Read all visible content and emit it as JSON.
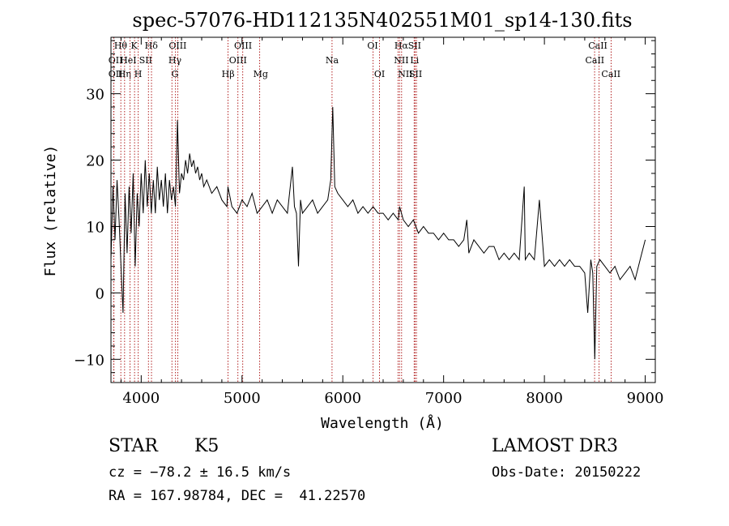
{
  "chart_data": {
    "type": "line",
    "title": "spec-57076-HD112135N402551M01_sp14-130.fits",
    "xlabel": "Wavelength (Å)",
    "ylabel": "Flux (relative)",
    "xlim": [
      3700,
      9100
    ],
    "ylim": [
      -13.5,
      38.5
    ],
    "x_ticks": [
      4000,
      5000,
      6000,
      7000,
      8000,
      9000
    ],
    "x_tick_labels": [
      "4000",
      "5000",
      "6000",
      "7000",
      "8000",
      "9000"
    ],
    "y_ticks": [
      -10,
      0,
      10,
      20,
      30
    ],
    "y_tick_labels": [
      "−10",
      "0",
      "10",
      "20",
      "30"
    ],
    "grid": false,
    "line_color": "#000000",
    "marker_color": "#b22222",
    "series": [
      {
        "x": [
          3700,
          3720,
          3740,
          3760,
          3780,
          3800,
          3820,
          3840,
          3860,
          3880,
          3900,
          3920,
          3940,
          3960,
          3980,
          4000,
          4020,
          4040,
          4060,
          4080,
          4100,
          4120,
          4140,
          4160,
          4180,
          4200,
          4220,
          4240,
          4260,
          4280,
          4300,
          4320,
          4340,
          4360,
          4380,
          4400,
          4420,
          4440,
          4460,
          4480,
          4500,
          4520,
          4540,
          4560,
          4580,
          4600,
          4620,
          4650,
          4700,
          4750,
          4800,
          4850,
          4860,
          4900,
          4950,
          5000,
          5050,
          5100,
          5150,
          5200,
          5250,
          5300,
          5350,
          5400,
          5450,
          5500,
          5520,
          5540,
          5560,
          5580,
          5600,
          5650,
          5700,
          5750,
          5800,
          5850,
          5880,
          5900,
          5920,
          5950,
          6000,
          6050,
          6100,
          6150,
          6200,
          6250,
          6300,
          6350,
          6400,
          6450,
          6500,
          6550,
          6563,
          6600,
          6650,
          6700,
          6750,
          6800,
          6850,
          6900,
          6950,
          7000,
          7050,
          7100,
          7150,
          7200,
          7230,
          7250,
          7300,
          7350,
          7400,
          7450,
          7500,
          7550,
          7600,
          7650,
          7700,
          7750,
          7800,
          7810,
          7850,
          7900,
          7950,
          8000,
          8050,
          8100,
          8150,
          8200,
          8250,
          8300,
          8350,
          8400,
          8430,
          8460,
          8480,
          8500,
          8520,
          8550,
          8600,
          8650,
          8700,
          8750,
          8800,
          8850,
          8900,
          8950,
          9000
        ],
        "y": [
          5,
          16,
          8,
          17,
          11,
          4,
          -3,
          15,
          6,
          16,
          9,
          18,
          4,
          15,
          10,
          18,
          12,
          20,
          13,
          18,
          12,
          17,
          12,
          19,
          14,
          17,
          13,
          18,
          12,
          17,
          14,
          16,
          13,
          26,
          15,
          18,
          17,
          20,
          18,
          21,
          19,
          20,
          18,
          19,
          17,
          18,
          16,
          17,
          15,
          16,
          14,
          13,
          16,
          13,
          12,
          14,
          13,
          15,
          12,
          13,
          14,
          12,
          14,
          13,
          12,
          19,
          13,
          12,
          4,
          14,
          12,
          13,
          14,
          12,
          13,
          14,
          17,
          28,
          16,
          15,
          14,
          13,
          14,
          12,
          13,
          12,
          13,
          12,
          12,
          11,
          12,
          11,
          13,
          11,
          10,
          11,
          9,
          10,
          9,
          9,
          8,
          9,
          8,
          8,
          7,
          8,
          11,
          6,
          8,
          7,
          6,
          7,
          7,
          5,
          6,
          5,
          6,
          5,
          16,
          5,
          6,
          5,
          14,
          4,
          5,
          4,
          5,
          4,
          5,
          4,
          4,
          3,
          -3,
          5,
          3,
          -10,
          4,
          5,
          4,
          3,
          4,
          2,
          3,
          4,
          2,
          5,
          8
        ]
      }
    ],
    "line_markers": [
      {
        "label": "Hθ",
        "wavelength": 3798,
        "row": 0,
        "label_x": 3796
      },
      {
        "label": "Hη",
        "wavelength": 3835,
        "row": 2,
        "label_x": 3835
      },
      {
        "label": "K",
        "wavelength": 3934,
        "row": 0,
        "label_x": 3930
      },
      {
        "label": "H",
        "wavelength": 3970,
        "row": 2,
        "label_x": 3970
      },
      {
        "label": "Hδ",
        "wavelength": 4102,
        "row": 0,
        "label_x": 4100
      },
      {
        "label": "OII",
        "wavelength": 3727,
        "row": 1,
        "label_x": 3745
      },
      {
        "label": "OII",
        "wavelength": 3729,
        "row": 2,
        "label_x": 3745
      },
      {
        "label": "HeI",
        "wavelength": 3889,
        "row": 1,
        "label_x": 3872
      },
      {
        "label": "SII",
        "wavelength": 4072,
        "row": 1,
        "label_x": 4044
      },
      {
        "label": "OIII",
        "wavelength": 4363,
        "row": 0,
        "label_x": 4362
      },
      {
        "label": "Hγ",
        "wavelength": 4340,
        "row": 1,
        "label_x": 4335
      },
      {
        "label": "G",
        "wavelength": 4305,
        "row": 2,
        "label_x": 4335
      },
      {
        "label": "OIII",
        "wavelength": 5007,
        "row": 0,
        "label_x": 5010
      },
      {
        "label": "OIII",
        "wavelength": 4959,
        "row": 1,
        "label_x": 4960
      },
      {
        "label": "Hβ",
        "wavelength": 4861,
        "row": 2,
        "label_x": 4862
      },
      {
        "label": "Mg",
        "wavelength": 5175,
        "row": 2,
        "label_x": 5185
      },
      {
        "label": "Na",
        "wavelength": 5893,
        "row": 1,
        "label_x": 5893
      },
      {
        "label": "OI",
        "wavelength": 6300,
        "row": 0,
        "label_x": 6296
      },
      {
        "label": "OI",
        "wavelength": 6364,
        "row": 2,
        "label_x": 6364
      },
      {
        "label": "Hα",
        "wavelength": 6563,
        "row": 0,
        "label_x": 6580
      },
      {
        "label": "SII",
        "wavelength": 6717,
        "row": 0,
        "label_x": 6712
      },
      {
        "label": "NII",
        "wavelength": 6548,
        "row": 1,
        "label_x": 6580
      },
      {
        "label": "Li",
        "wavelength": 6708,
        "row": 1,
        "label_x": 6712
      },
      {
        "label": "NII",
        "wavelength": 6583,
        "row": 2,
        "label_x": 6620
      },
      {
        "label": "SII",
        "wavelength": 6731,
        "row": 2,
        "label_x": 6722
      },
      {
        "label": "CaII",
        "wavelength": 8498,
        "row": 0,
        "label_x": 8530
      },
      {
        "label": "CaII",
        "wavelength": 8542,
        "row": 1,
        "label_x": 8500
      },
      {
        "label": "CaII",
        "wavelength": 8662,
        "row": 2,
        "label_x": 8660
      }
    ]
  },
  "footer": {
    "class_label": "STAR",
    "subclass_label": "K5",
    "survey_label": "LAMOST DR3",
    "redshift_text": "cz = −78.2 ± 16.5 km/s",
    "obs_date_text": "Obs-Date: 20150222",
    "coords_text": "RA = 167.98784, DEC =  41.22570"
  }
}
